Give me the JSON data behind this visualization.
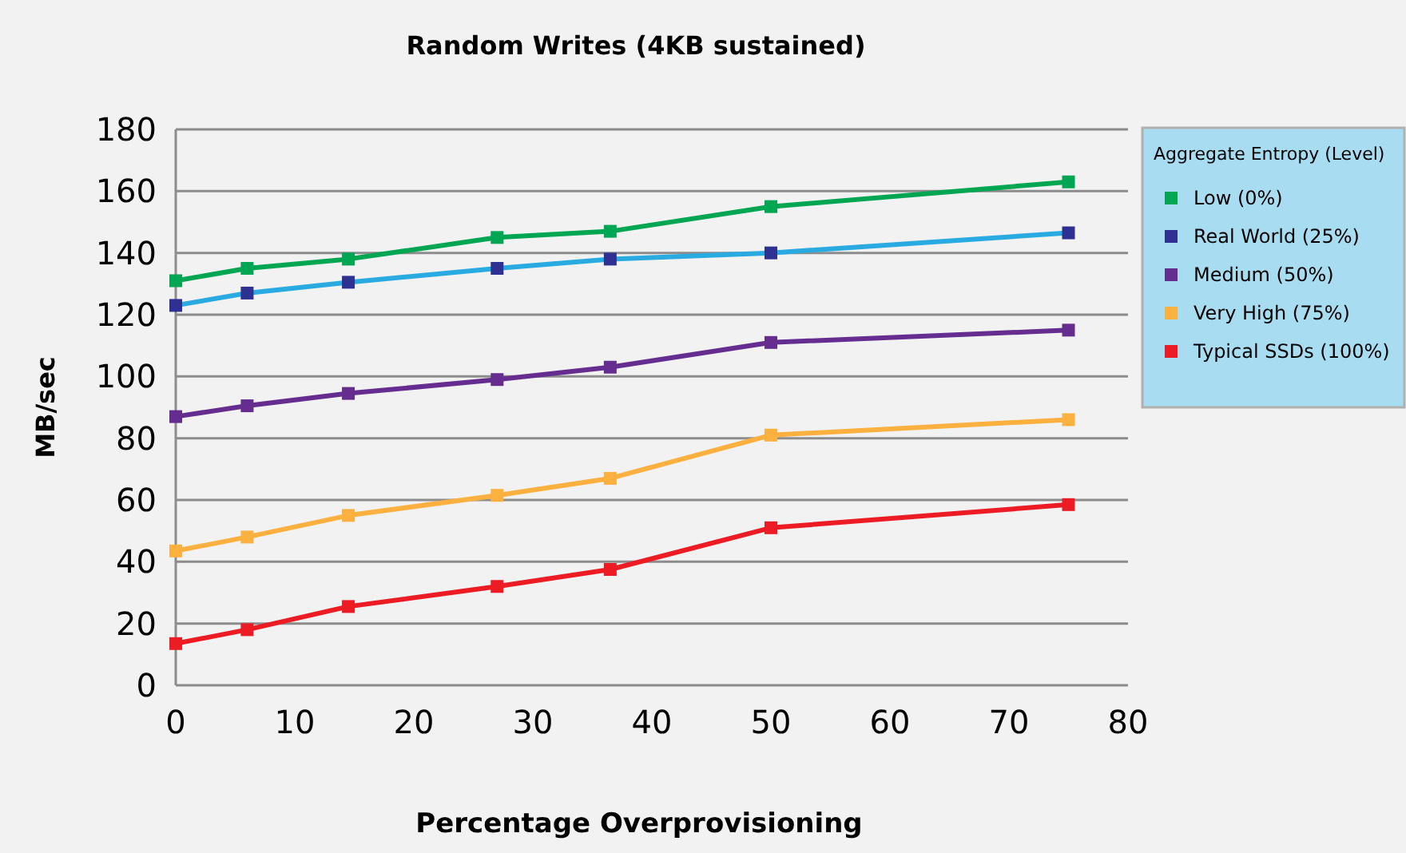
{
  "chart_data": {
    "type": "line",
    "title": "Random Writes (4KB sustained)",
    "xlabel": "Percentage Overprovisioning",
    "ylabel": "MB/sec",
    "legend_title": "Aggregate Entropy (Level)",
    "x": [
      0,
      6,
      14.5,
      27,
      36.5,
      50,
      75
    ],
    "series": [
      {
        "name": "Low (0%)",
        "color": "#00a651",
        "values": [
          131,
          135,
          138,
          145,
          147,
          155,
          163
        ]
      },
      {
        "name": "Real World (25%)",
        "color": "#29abe2",
        "colors": [
          "#2e3192",
          "#2e3192",
          "#2e3192",
          "#2e3192",
          "#2e3192",
          "#2e3192",
          "#2e3192"
        ],
        "values": [
          123,
          127,
          130.5,
          135,
          138,
          140,
          146.5
        ]
      },
      {
        "name": "Medium (50%)",
        "color": "#662d91",
        "values": [
          87,
          90.5,
          94.5,
          99,
          103,
          111,
          115
        ]
      },
      {
        "name": "Very High (75%)",
        "color": "#fbb040",
        "values": [
          43.5,
          48,
          55,
          61.5,
          67,
          81,
          86
        ]
      },
      {
        "name": "Typical SSDs (100%)",
        "color": "#ed1c24",
        "values": [
          13.5,
          18,
          25.5,
          32,
          37.5,
          51,
          58.5
        ]
      }
    ],
    "xlim": [
      0,
      80
    ],
    "xticks": [
      0,
      10,
      20,
      30,
      40,
      50,
      60,
      70,
      80
    ],
    "ylim": [
      0,
      180
    ],
    "yticks": [
      0,
      20,
      40,
      60,
      80,
      100,
      120,
      140,
      160,
      180
    ],
    "grid": "y",
    "legend": "top right",
    "marker": "square",
    "line_style": "solid"
  }
}
